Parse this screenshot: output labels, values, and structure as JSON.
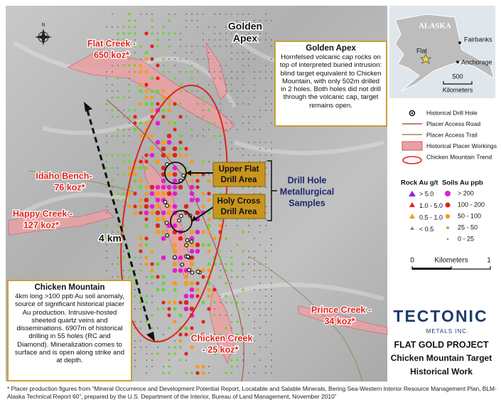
{
  "map_labels": {
    "golden_apex": [
      "Golden",
      "Apex"
    ],
    "flat_creek": [
      "Flat Creek -",
      "650 koz*"
    ],
    "idaho_bench": [
      "Idaho Bench-",
      "76 koz*"
    ],
    "happy_creek": [
      "Happy Creek -",
      "127 koz*"
    ],
    "distance": "4 km",
    "chicken_creek": [
      "Chicken Creek",
      "- 25 koz*"
    ],
    "prince_creek": [
      "Prince Creek -",
      "34 koz*"
    ],
    "upper_flat": [
      "Upper Flat",
      "Drill Area"
    ],
    "holy_cross": [
      "Holy Cross",
      "Drill Area"
    ],
    "samples": [
      "Drill Hole",
      "Metallurgical",
      "Samples"
    ],
    "north": "N"
  },
  "golden_apex_box": {
    "title": "Golden Apex",
    "text": "Hornfelsed volcanic cap rocks on top of interpreted buried intrusion: blind target equivalent to Chicken Mountain, with only 502m drilled in 2 holes. Both holes did not drill through the volcanic cap, target remains open."
  },
  "chicken_mountain_box": {
    "title": "Chicken Mountain",
    "text": "4km long >100 ppb Au soil anomaly, source of significant historical placer Au production. Intrusive-hosted sheeted quartz veins and disseminations. 6907m of historical drilling in 55 holes (RC and Diamond). Mineralization comes to surface and is open along strike and at depth."
  },
  "inset": {
    "state": "ALASKA",
    "cities": [
      "Fairbanks",
      "Flat",
      "Anchorage"
    ],
    "scale_value": "500",
    "scale_unit": "Kilometers"
  },
  "legend": {
    "items": [
      "Historical Drill Hole",
      "Placer Access Road",
      "Placer Access Trail",
      "Historical Placer Workings",
      "Chicken Mountain Trend"
    ],
    "rock": {
      "title": "Rock Au g/t",
      "classes": [
        "> 5.0",
        "1.0 - 5.0",
        "0.5 - 1.0",
        "< 0.5"
      ]
    },
    "soils": {
      "title": "Soils Au ppb",
      "classes": [
        "> 200",
        "100 - 200",
        "50 - 100",
        "25 - 50",
        "0 - 25"
      ]
    },
    "scale": {
      "start": "0",
      "unit": "Kilometers",
      "end": "1"
    }
  },
  "logo": {
    "name": "TECTONIC",
    "sub": "METALS INC."
  },
  "project_title": [
    "FLAT GOLD PROJECT",
    "Chicken Mountain Target",
    "Historical Work"
  ],
  "footnote": "* Placer production figures from “Mineral Occurrence and Development Potential Report, Locatable and Salable Minerals, Bering Sea-Western Interior Resource Management Plan, BLM-Alaska Technical Report 60”, prepared by the U.S. Department of the Interior, Bureau of Land Management, November 2010”"
}
